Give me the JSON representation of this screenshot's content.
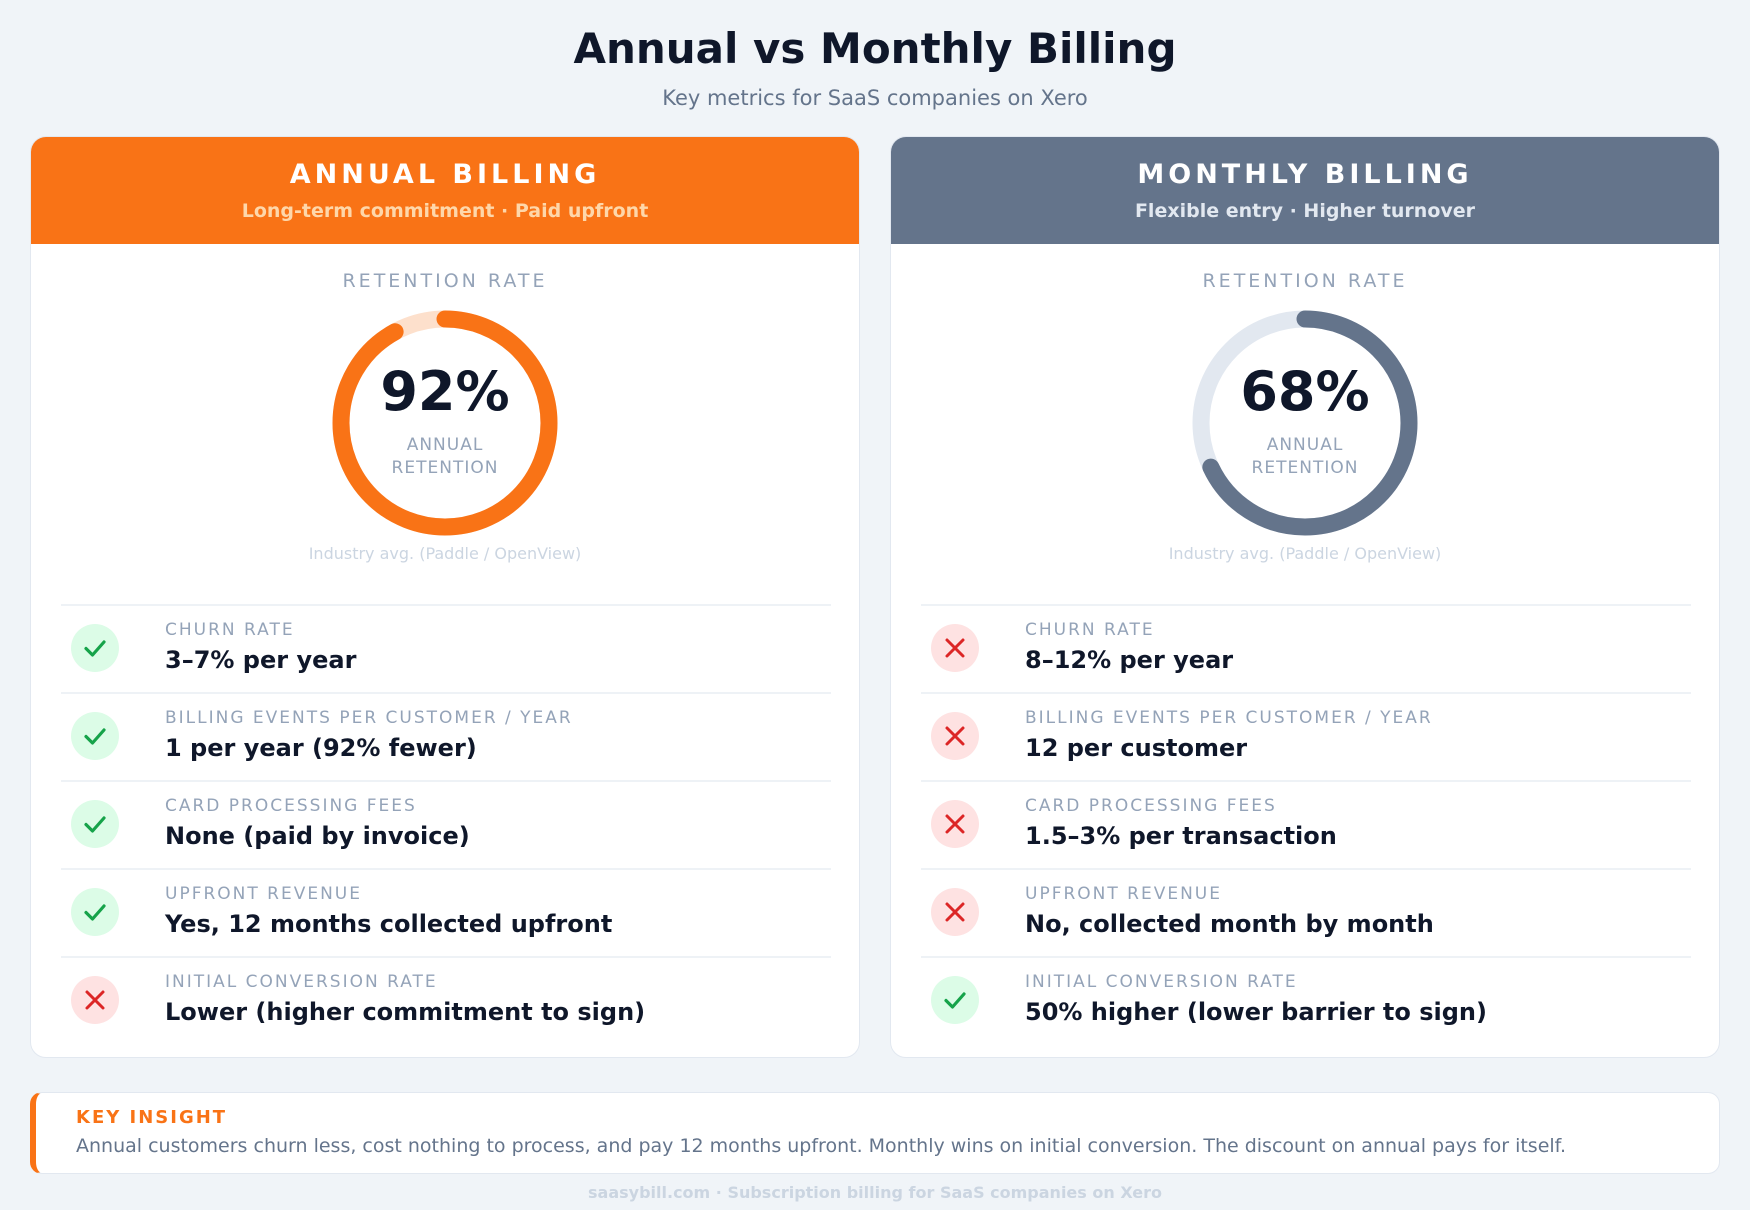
{
  "title": "Annual vs Monthly Billing",
  "subtitle": "Key metrics for SaaS companies on Xero",
  "colors": {
    "annual": "#f97316",
    "annual_track": "#fde0cc",
    "monthly": "#64748b",
    "monthly_track": "#e2e8f0",
    "good": "#16a34a",
    "bad": "#dc2626"
  },
  "annual": {
    "heading": "ANNUAL BILLING",
    "tagline": "Long-term commitment · Paid upfront",
    "retention_label": "RETENTION RATE",
    "retention_value": "92%",
    "retention_fraction": 0.92,
    "retention_caption_1": "ANNUAL",
    "retention_caption_2": "RETENTION",
    "source": "Industry avg. (Paddle / OpenView)",
    "rows": [
      {
        "label": "CHURN RATE",
        "value": "3–7% per year",
        "status": "good",
        "icon": "check-icon"
      },
      {
        "label": "BILLING EVENTS PER CUSTOMER / YEAR",
        "value": "1 per year (92% fewer)",
        "status": "good",
        "icon": "check-icon"
      },
      {
        "label": "CARD PROCESSING FEES",
        "value": "None (paid by invoice)",
        "status": "good",
        "icon": "check-icon"
      },
      {
        "label": "UPFRONT REVENUE",
        "value": "Yes, 12 months collected upfront",
        "status": "good",
        "icon": "check-icon"
      },
      {
        "label": "INITIAL CONVERSION RATE",
        "value": "Lower (higher commitment to sign)",
        "status": "bad",
        "icon": "x-icon"
      }
    ]
  },
  "monthly": {
    "heading": "MONTHLY BILLING",
    "tagline": "Flexible entry · Higher turnover",
    "retention_label": "RETENTION RATE",
    "retention_value": "68%",
    "retention_fraction": 0.68,
    "retention_caption_1": "ANNUAL",
    "retention_caption_2": "RETENTION",
    "source": "Industry avg. (Paddle / OpenView)",
    "rows": [
      {
        "label": "CHURN RATE",
        "value": "8–12% per year",
        "status": "bad",
        "icon": "x-icon"
      },
      {
        "label": "BILLING EVENTS PER CUSTOMER / YEAR",
        "value": "12 per customer",
        "status": "bad",
        "icon": "x-icon"
      },
      {
        "label": "CARD PROCESSING FEES",
        "value": "1.5–3% per transaction",
        "status": "bad",
        "icon": "x-icon"
      },
      {
        "label": "UPFRONT REVENUE",
        "value": "No, collected month by month",
        "status": "bad",
        "icon": "x-icon"
      },
      {
        "label": "INITIAL CONVERSION RATE",
        "value": "50% higher (lower barrier to sign)",
        "status": "good",
        "icon": "check-icon"
      }
    ]
  },
  "insight": {
    "heading": "KEY INSIGHT",
    "text": "Annual customers churn less, cost nothing to process, and pay 12 months upfront. Monthly wins on initial conversion. The discount on annual pays for itself."
  },
  "footer": "saasybill.com · Subscription billing for SaaS companies on Xero"
}
